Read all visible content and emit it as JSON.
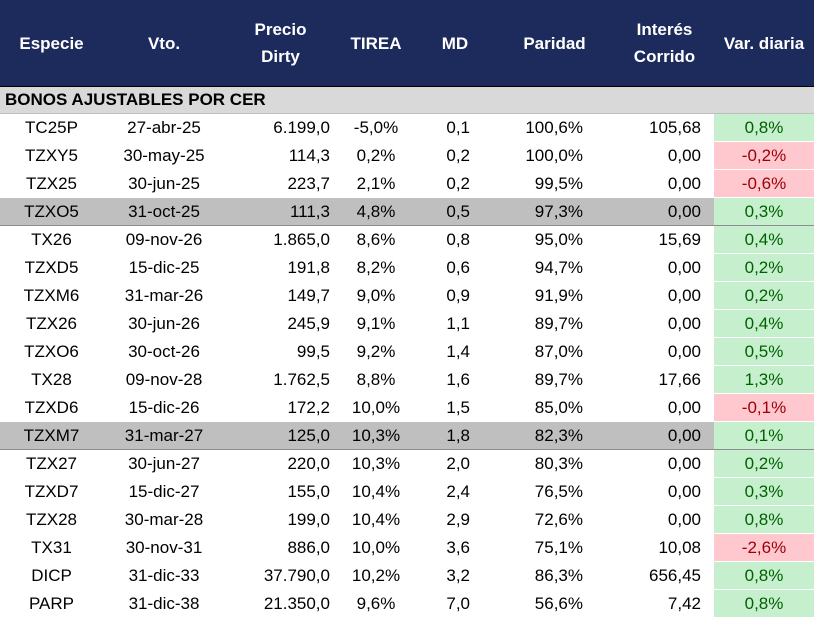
{
  "header": {
    "especie": "Especie",
    "vto": "Vto.",
    "precio_l1": "Precio",
    "precio_l2": "Dirty",
    "tirea": "TIREA",
    "md": "MD",
    "paridad": "Paridad",
    "interes_l1": "Interés",
    "interes_l2": "Corrido",
    "var": "Var. diaria"
  },
  "section_title": "BONOS AJUSTABLES POR CER",
  "colors": {
    "header_bg": "#1d2a5c",
    "section_bg": "#d9d9d9",
    "highlight_row_bg": "#bfbfbf",
    "positive_bg": "#c6efce",
    "positive_text": "#006100",
    "negative_bg": "#ffc7ce",
    "negative_text": "#9c0006"
  },
  "rows": [
    {
      "especie": "TC25P",
      "vto": "27-abr-25",
      "precio": "6.199,0",
      "tirea": "-5,0%",
      "md": "0,1",
      "paridad": "100,6%",
      "interes": "105,68",
      "var": "0,8%",
      "trend": "pos",
      "highlight": false
    },
    {
      "especie": "TZXY5",
      "vto": "30-may-25",
      "precio": "114,3",
      "tirea": "0,2%",
      "md": "0,2",
      "paridad": "100,0%",
      "interes": "0,00",
      "var": "-0,2%",
      "trend": "neg",
      "highlight": false
    },
    {
      "especie": "TZX25",
      "vto": "30-jun-25",
      "precio": "223,7",
      "tirea": "2,1%",
      "md": "0,2",
      "paridad": "99,5%",
      "interes": "0,00",
      "var": "-0,6%",
      "trend": "neg",
      "highlight": false
    },
    {
      "especie": "TZXO5",
      "vto": "31-oct-25",
      "precio": "111,3",
      "tirea": "4,8%",
      "md": "0,5",
      "paridad": "97,3%",
      "interes": "0,00",
      "var": "0,3%",
      "trend": "pos",
      "highlight": true
    },
    {
      "especie": "TX26",
      "vto": "09-nov-26",
      "precio": "1.865,0",
      "tirea": "8,6%",
      "md": "0,8",
      "paridad": "95,0%",
      "interes": "15,69",
      "var": "0,4%",
      "trend": "pos",
      "highlight": false
    },
    {
      "especie": "TZXD5",
      "vto": "15-dic-25",
      "precio": "191,8",
      "tirea": "8,2%",
      "md": "0,6",
      "paridad": "94,7%",
      "interes": "0,00",
      "var": "0,2%",
      "trend": "pos",
      "highlight": false
    },
    {
      "especie": "TZXM6",
      "vto": "31-mar-26",
      "precio": "149,7",
      "tirea": "9,0%",
      "md": "0,9",
      "paridad": "91,9%",
      "interes": "0,00",
      "var": "0,2%",
      "trend": "pos",
      "highlight": false
    },
    {
      "especie": "TZX26",
      "vto": "30-jun-26",
      "precio": "245,9",
      "tirea": "9,1%",
      "md": "1,1",
      "paridad": "89,7%",
      "interes": "0,00",
      "var": "0,4%",
      "trend": "pos",
      "highlight": false
    },
    {
      "especie": "TZXO6",
      "vto": "30-oct-26",
      "precio": "99,5",
      "tirea": "9,2%",
      "md": "1,4",
      "paridad": "87,0%",
      "interes": "0,00",
      "var": "0,5%",
      "trend": "pos",
      "highlight": false
    },
    {
      "especie": "TX28",
      "vto": "09-nov-28",
      "precio": "1.762,5",
      "tirea": "8,8%",
      "md": "1,6",
      "paridad": "89,7%",
      "interes": "17,66",
      "var": "1,3%",
      "trend": "pos",
      "highlight": false
    },
    {
      "especie": "TZXD6",
      "vto": "15-dic-26",
      "precio": "172,2",
      "tirea": "10,0%",
      "md": "1,5",
      "paridad": "85,0%",
      "interes": "0,00",
      "var": "-0,1%",
      "trend": "neg",
      "highlight": false
    },
    {
      "especie": "TZXM7",
      "vto": "31-mar-27",
      "precio": "125,0",
      "tirea": "10,3%",
      "md": "1,8",
      "paridad": "82,3%",
      "interes": "0,00",
      "var": "0,1%",
      "trend": "pos",
      "highlight": true
    },
    {
      "especie": "TZX27",
      "vto": "30-jun-27",
      "precio": "220,0",
      "tirea": "10,3%",
      "md": "2,0",
      "paridad": "80,3%",
      "interes": "0,00",
      "var": "0,2%",
      "trend": "pos",
      "highlight": false
    },
    {
      "especie": "TZXD7",
      "vto": "15-dic-27",
      "precio": "155,0",
      "tirea": "10,4%",
      "md": "2,4",
      "paridad": "76,5%",
      "interes": "0,00",
      "var": "0,3%",
      "trend": "pos",
      "highlight": false
    },
    {
      "especie": "TZX28",
      "vto": "30-mar-28",
      "precio": "199,0",
      "tirea": "10,4%",
      "md": "2,9",
      "paridad": "72,6%",
      "interes": "0,00",
      "var": "0,8%",
      "trend": "pos",
      "highlight": false
    },
    {
      "especie": "TX31",
      "vto": "30-nov-31",
      "precio": "886,0",
      "tirea": "10,0%",
      "md": "3,6",
      "paridad": "75,1%",
      "interes": "10,08",
      "var": "-2,6%",
      "trend": "neg",
      "highlight": false
    },
    {
      "especie": "DICP",
      "vto": "31-dic-33",
      "precio": "37.790,0",
      "tirea": "10,2%",
      "md": "3,2",
      "paridad": "86,3%",
      "interes": "656,45",
      "var": "0,8%",
      "trend": "pos",
      "highlight": false
    },
    {
      "especie": "PARP",
      "vto": "31-dic-38",
      "precio": "21.350,0",
      "tirea": "9,6%",
      "md": "7,0",
      "paridad": "56,6%",
      "interes": "7,42",
      "var": "0,8%",
      "trend": "pos",
      "highlight": false
    }
  ]
}
